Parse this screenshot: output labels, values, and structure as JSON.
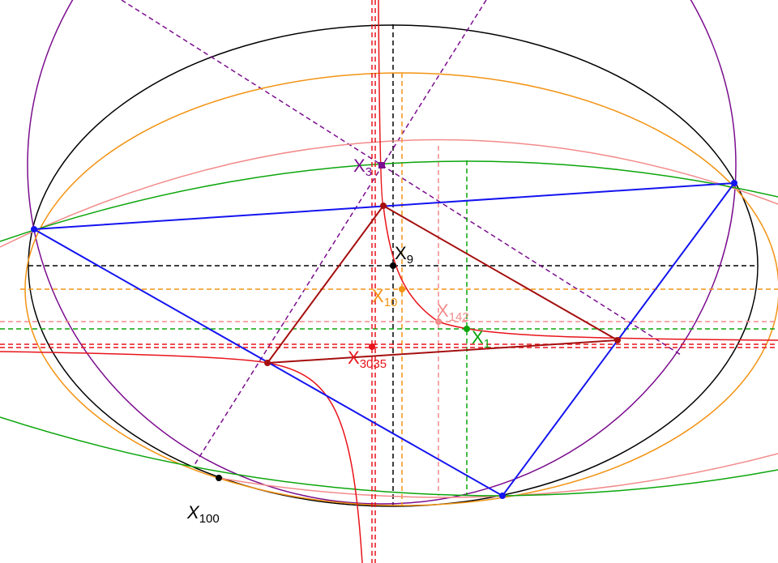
{
  "colors": {
    "black": "#000000",
    "purple": "#7b0d8e",
    "orange": "#f39313",
    "pink": "#f28b8b",
    "green": "#0aa50a",
    "red": "#e8141b",
    "darkred": "#a50f0f",
    "blue": "#1414f0"
  },
  "labels": {
    "x9": {
      "main": "X",
      "sub": "9"
    },
    "x10": {
      "main": "X",
      "sub": "10"
    },
    "x142": {
      "main": "X",
      "sub": "142"
    },
    "x1": {
      "main": "X",
      "sub": "1"
    },
    "x3": {
      "main": "X",
      "sub": "3"
    },
    "x3035": {
      "main": "X",
      "sub": "3035"
    },
    "x100": {
      "main": "X",
      "sub": "100"
    }
  }
}
